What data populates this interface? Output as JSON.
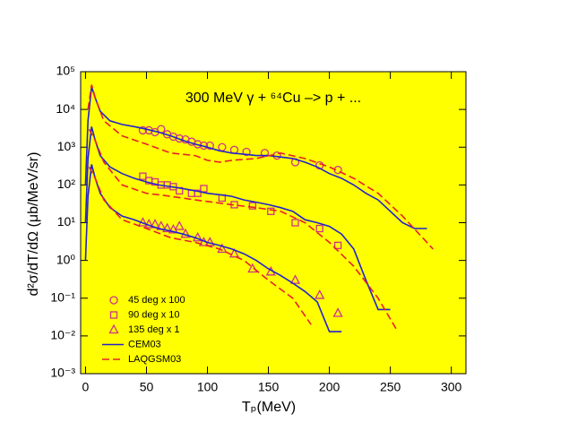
{
  "chart_data": {
    "type": "line",
    "title": "300 MeV γ + ⁶⁴Cu –> p + ...",
    "x_label": "Tₚ(MeV)",
    "y_label": "d²σ/dT/dΩ (μb/MeV/sr)",
    "background": "#ffff00",
    "y_scale": "log",
    "xlim": [
      -4,
      312
    ],
    "ylim": [
      0.001,
      100000
    ],
    "xticks": [
      0,
      50,
      100,
      150,
      200,
      250,
      300
    ],
    "yticks": [
      {
        "value": 0.001,
        "label": "10⁻³"
      },
      {
        "value": 0.01,
        "label": "10⁻²"
      },
      {
        "value": 0.1,
        "label": "10⁻¹"
      },
      {
        "value": 1,
        "label": "10⁰"
      },
      {
        "value": 10,
        "label": "10¹"
      },
      {
        "value": 100,
        "label": "10²"
      },
      {
        "value": 1000,
        "label": "10³"
      },
      {
        "value": 10000,
        "label": "10⁴"
      },
      {
        "value": 100000,
        "label": "10⁵"
      }
    ],
    "series": [
      {
        "name": "45 deg x 100",
        "style": "points",
        "marker": "circle",
        "color": "#cc3388",
        "x": [
          47,
          52,
          57,
          62,
          67,
          72,
          77,
          82,
          87,
          92,
          97,
          102,
          112,
          122,
          132,
          147,
          157,
          172,
          192,
          207
        ],
        "values": [
          2800,
          2800,
          2500,
          3000,
          2200,
          1900,
          1700,
          1600,
          1400,
          1200,
          1100,
          1100,
          1000,
          850,
          750,
          700,
          600,
          400,
          330,
          250
        ]
      },
      {
        "name": "90 deg x 10",
        "style": "points",
        "marker": "square",
        "color": "#cc3388",
        "x": [
          47,
          52,
          57,
          62,
          67,
          72,
          77,
          87,
          92,
          97,
          112,
          122,
          137,
          152,
          172,
          192,
          207
        ],
        "values": [
          170,
          130,
          120,
          100,
          100,
          90,
          70,
          60,
          60,
          80,
          45,
          30,
          28,
          20,
          10,
          7,
          2.5
        ]
      },
      {
        "name": "135 deg x 1",
        "style": "points",
        "marker": "triangle",
        "color": "#cc3388",
        "x": [
          47,
          52,
          57,
          62,
          67,
          72,
          77,
          82,
          92,
          97,
          102,
          112,
          122,
          137,
          152,
          172,
          192,
          207
        ],
        "values": [
          10,
          9,
          9,
          8,
          7,
          6.5,
          8,
          5,
          4,
          3,
          3,
          2,
          1.5,
          0.6,
          0.5,
          0.3,
          0.12,
          0.04
        ]
      },
      {
        "name": "CEM03",
        "style": "solid",
        "color": "#2222cc",
        "x": [
          0,
          2,
          5,
          8,
          12,
          20,
          30,
          40,
          50,
          60,
          70,
          80,
          90,
          100,
          110,
          120,
          130,
          140,
          150,
          160,
          170,
          180,
          190,
          200,
          210,
          220,
          230,
          240,
          250,
          260,
          270,
          280
        ],
        "values": [
          100,
          5000,
          40000,
          20000,
          9000,
          5000,
          4000,
          3500,
          3000,
          2500,
          2000,
          1500,
          1200,
          1000,
          800,
          700,
          650,
          600,
          600,
          550,
          500,
          400,
          300,
          200,
          150,
          100,
          60,
          40,
          20,
          10,
          7,
          7
        ]
      },
      {
        "style": "solid",
        "color": "#2222cc",
        "x": [
          0,
          2,
          5,
          8,
          12,
          20,
          30,
          40,
          50,
          60,
          70,
          80,
          90,
          100,
          110,
          120,
          130,
          140,
          150,
          160,
          170,
          180,
          190,
          200,
          210,
          220,
          230,
          240,
          250
        ],
        "values": [
          10,
          500,
          3500,
          1500,
          600,
          300,
          200,
          150,
          120,
          100,
          90,
          80,
          70,
          60,
          55,
          50,
          40,
          35,
          30,
          25,
          20,
          12,
          10,
          8,
          5,
          2,
          0.3,
          0.05,
          0.05
        ]
      },
      {
        "style": "solid",
        "color": "#2222cc",
        "x": [
          0,
          2,
          5,
          8,
          12,
          20,
          30,
          40,
          50,
          60,
          70,
          80,
          90,
          100,
          110,
          120,
          130,
          140,
          150,
          160,
          170,
          180,
          190,
          200,
          210
        ],
        "values": [
          1,
          50,
          350,
          150,
          60,
          25,
          15,
          12,
          9,
          7,
          6,
          5,
          4,
          3,
          2.5,
          2,
          1.5,
          1,
          0.6,
          0.4,
          0.25,
          0.15,
          0.08,
          0.013,
          0.013
        ]
      },
      {
        "name": "LAQGSM03",
        "style": "dashed",
        "color": "#e8202a",
        "x": [
          2,
          5,
          8,
          15,
          30,
          50,
          70,
          90,
          100,
          110,
          120,
          140,
          160,
          180,
          200,
          220,
          240,
          260,
          285
        ],
        "values": [
          10000,
          45000,
          20000,
          5000,
          2000,
          1200,
          700,
          600,
          450,
          400,
          450,
          500,
          700,
          500,
          300,
          150,
          60,
          15,
          2
        ]
      },
      {
        "style": "dashed",
        "color": "#e8202a",
        "x": [
          3,
          8,
          15,
          30,
          50,
          70,
          90,
          120,
          140,
          160,
          180,
          200,
          220,
          240,
          255
        ],
        "values": [
          3000,
          1500,
          400,
          100,
          60,
          50,
          40,
          30,
          25,
          20,
          10,
          3,
          0.7,
          0.1,
          0.015
        ]
      },
      {
        "style": "dashed",
        "color": "#e8202a",
        "x": [
          3,
          8,
          15,
          30,
          50,
          70,
          90,
          110,
          130,
          150,
          170,
          185
        ],
        "values": [
          300,
          150,
          40,
          12,
          7,
          4,
          3,
          2,
          1,
          0.3,
          0.1,
          0.02
        ]
      }
    ]
  }
}
